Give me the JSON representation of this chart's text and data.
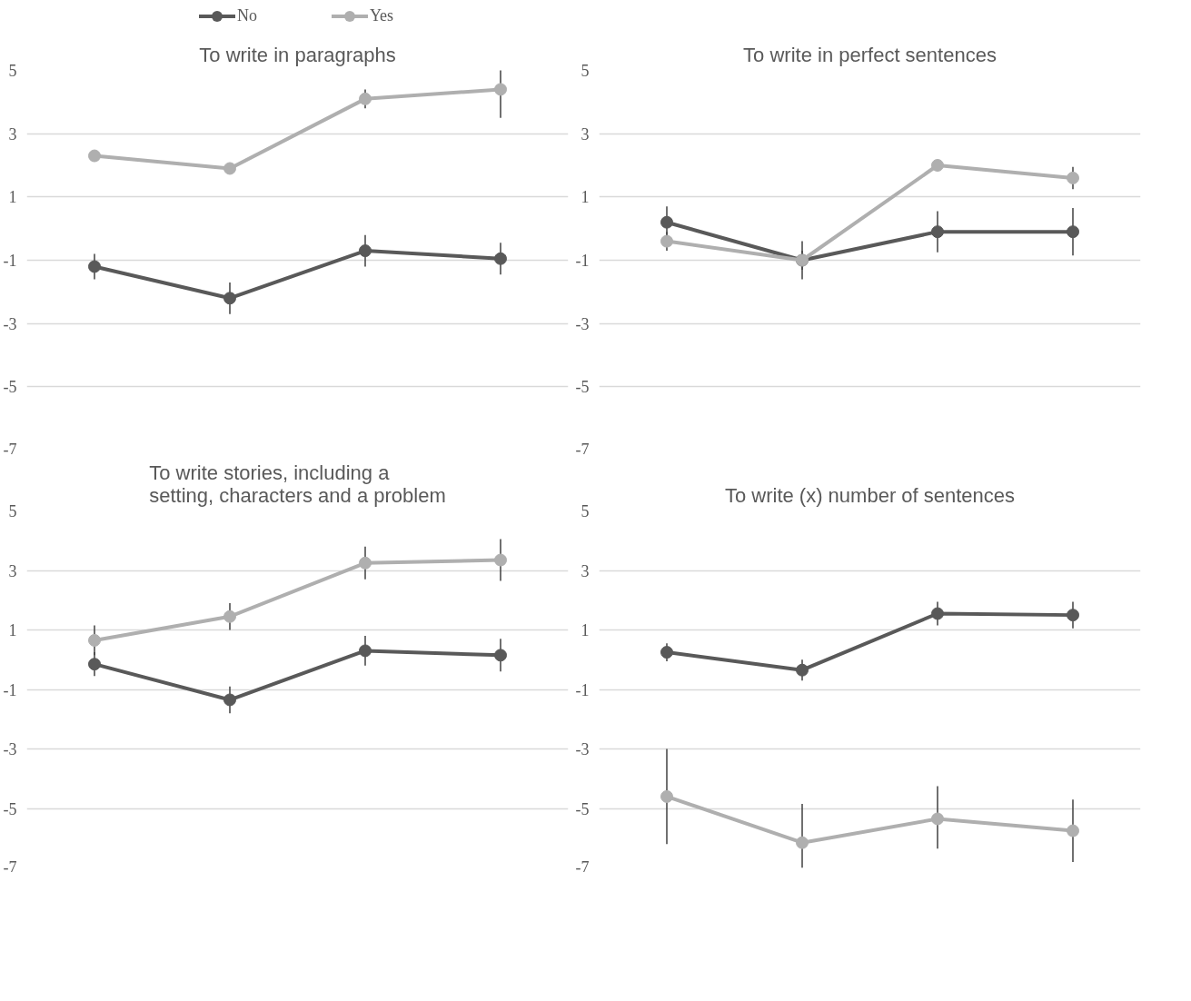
{
  "chart_data": [
    {
      "type": "line",
      "title": "To write in paragraphs",
      "categories": [
        null,
        null,
        null,
        null
      ],
      "legend": "top",
      "grid": "y",
      "marker": "circle",
      "tick_labels": "y",
      "ylim": [
        -7,
        5
      ],
      "yticks": [
        -7,
        -5,
        -3,
        -1,
        1,
        3,
        5
      ],
      "series": [
        {
          "name": "No",
          "color": "#595959",
          "values": [
            -1.2,
            -2.2,
            -0.7,
            -0.95
          ],
          "errors": [
            0.4,
            0.5,
            0.5,
            0.5
          ]
        },
        {
          "name": "Yes",
          "color": "#afafaf",
          "values": [
            2.3,
            1.9,
            4.1,
            4.4
          ],
          "errors": [
            0.1,
            0.1,
            0.3,
            0.9
          ]
        }
      ]
    },
    {
      "type": "line",
      "title": "To write in perfect sentences",
      "categories": [
        null,
        null,
        null,
        null
      ],
      "grid": "y",
      "marker": "circle",
      "tick_labels": "y",
      "ylim": [
        -7,
        5
      ],
      "yticks": [
        -7,
        -5,
        -3,
        -1,
        1,
        3,
        5
      ],
      "series": [
        {
          "color": "#595959",
          "values": [
            0.2,
            -1.0,
            -0.1,
            -0.1
          ],
          "errors": [
            0.5,
            0.6,
            0.65,
            0.75
          ]
        },
        {
          "color": "#afafaf",
          "values": [
            -0.4,
            -1.0,
            2.0,
            1.6
          ],
          "errors": [
            0.3,
            0.3,
            0.1,
            0.35
          ]
        }
      ]
    },
    {
      "type": "line",
      "title": "To write stories, including a\nsetting, characters and a problem",
      "categories": [
        null,
        null,
        null,
        null
      ],
      "grid": "y",
      "marker": "circle",
      "tick_labels": "y",
      "ylim": [
        -7,
        5
      ],
      "yticks": [
        -7,
        -5,
        -3,
        -1,
        1,
        3,
        5
      ],
      "series": [
        {
          "color": "#595959",
          "values": [
            -0.15,
            -1.35,
            0.3,
            0.15
          ],
          "errors": [
            0.4,
            0.45,
            0.5,
            0.55
          ]
        },
        {
          "color": "#afafaf",
          "values": [
            0.65,
            1.45,
            3.25,
            3.35
          ],
          "errors": [
            0.5,
            0.45,
            0.55,
            0.7
          ]
        }
      ]
    },
    {
      "type": "line",
      "title": "To write (x) number of sentences",
      "categories": [
        null,
        null,
        null,
        null
      ],
      "grid": "y",
      "marker": "circle",
      "tick_labels": "y",
      "ylim": [
        -7,
        5
      ],
      "yticks": [
        -7,
        -5,
        -3,
        -1,
        1,
        3,
        5
      ],
      "series": [
        {
          "color": "#595959",
          "values": [
            0.25,
            -0.35,
            1.55,
            1.5
          ],
          "errors": [
            0.3,
            0.35,
            0.4,
            0.45
          ]
        },
        {
          "color": "#afafaf",
          "values": [
            -4.6,
            -6.15,
            -5.35,
            -5.75
          ],
          "errors": [
            [
              -6.2,
              -3.0
            ],
            [
              -7.0,
              -4.85
            ],
            [
              -6.35,
              -4.25
            ],
            [
              -6.8,
              -4.7
            ]
          ]
        }
      ]
    }
  ]
}
